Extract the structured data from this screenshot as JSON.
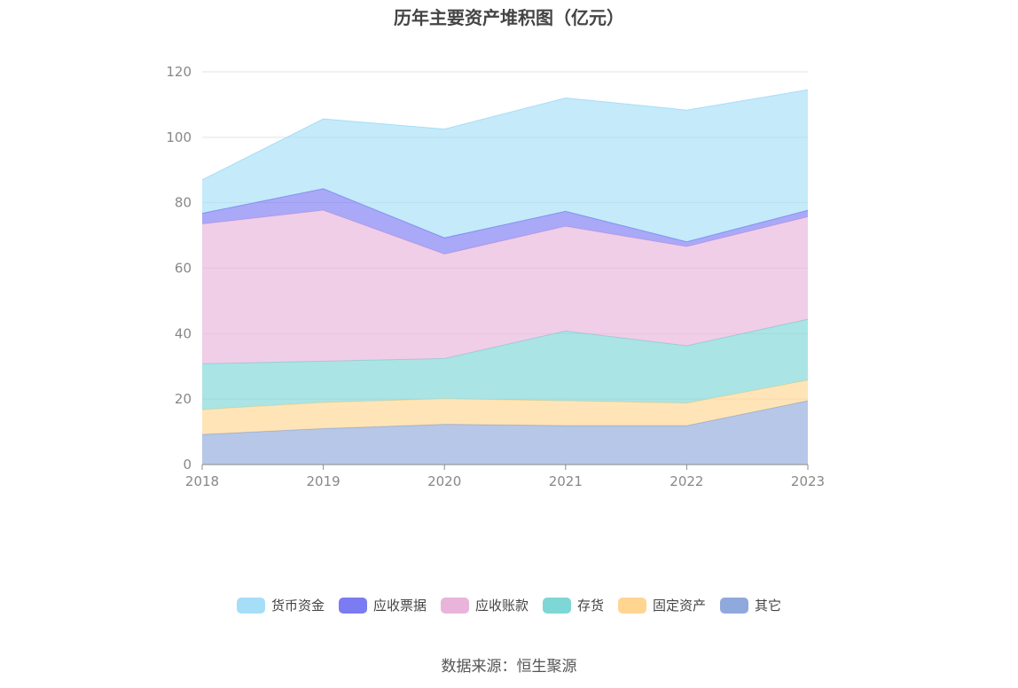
{
  "chart_data": {
    "type": "area",
    "stacked": true,
    "title": "历年主要资产堆积图（亿元）",
    "xlabel": "",
    "ylabel": "",
    "x": [
      "2018",
      "2019",
      "2020",
      "2021",
      "2022",
      "2023"
    ],
    "ylim": [
      0,
      120
    ],
    "yticks": [
      0,
      20,
      40,
      60,
      80,
      100,
      120
    ],
    "grid": true,
    "legend_position": "bottom",
    "series": [
      {
        "name": "其它",
        "color": "#8fa9dc",
        "values": [
          9.2,
          11.0,
          12.3,
          11.9,
          11.9,
          19.5
        ]
      },
      {
        "name": "固定资产",
        "color": "#ffd591",
        "values": [
          7.6,
          8.0,
          7.8,
          7.6,
          6.9,
          6.3
        ]
      },
      {
        "name": "存货",
        "color": "#7ed6d6",
        "values": [
          14.0,
          12.6,
          12.3,
          21.3,
          17.5,
          18.6
        ]
      },
      {
        "name": "应收账款",
        "color": "#e8b4da",
        "values": [
          42.7,
          46.1,
          31.9,
          32.0,
          30.3,
          31.3
        ]
      },
      {
        "name": "应收票据",
        "color": "#7b7bf2",
        "values": [
          3.3,
          6.6,
          5.0,
          4.6,
          1.5,
          2.0
        ]
      },
      {
        "name": "货币资金",
        "color": "#a6def8",
        "values": [
          10.2,
          21.3,
          33.2,
          34.6,
          40.2,
          36.8
        ]
      }
    ]
  },
  "legend": {
    "items": [
      {
        "label": "货币资金",
        "color": "#a6def8"
      },
      {
        "label": "应收票据",
        "color": "#7b7bf2"
      },
      {
        "label": "应收账款",
        "color": "#e8b4da"
      },
      {
        "label": "存货",
        "color": "#7ed6d6"
      },
      {
        "label": "固定资产",
        "color": "#ffd591"
      },
      {
        "label": "其它",
        "color": "#8fa9dc"
      }
    ]
  },
  "source": "数据来源：恒生聚源"
}
